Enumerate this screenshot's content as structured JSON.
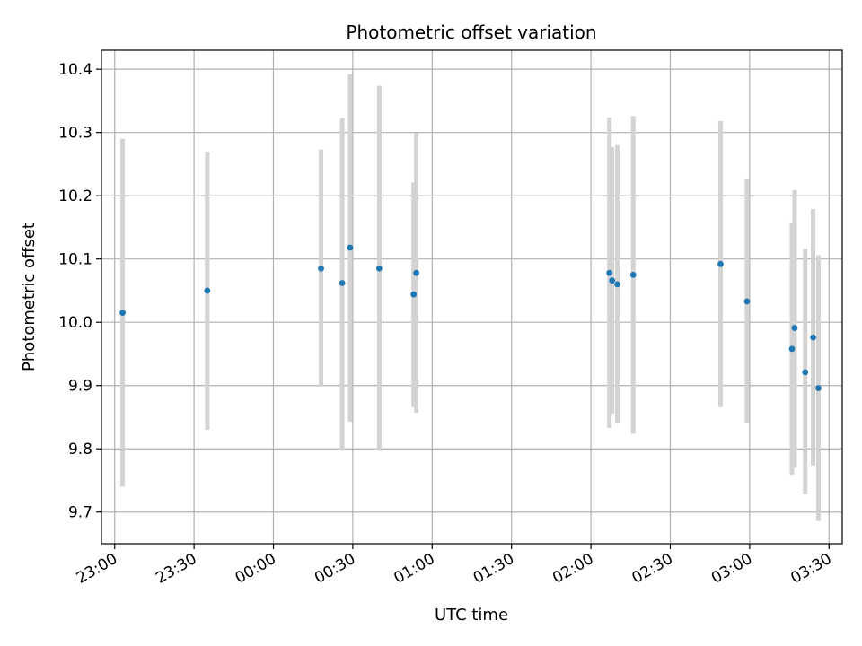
{
  "chart_data": {
    "type": "scatter",
    "title": "Photometric offset variation",
    "xlabel": "UTC time",
    "ylabel": "Photometric offset",
    "grid": true,
    "x_axis": {
      "kind": "time",
      "range": [
        "22:55",
        "03:35"
      ],
      "ticks": [
        "23:00",
        "23:30",
        "00:00",
        "00:30",
        "01:00",
        "01:30",
        "02:00",
        "02:30",
        "03:00",
        "03:30"
      ]
    },
    "y_axis": {
      "range": [
        9.65,
        10.43
      ],
      "ticks": [
        "9.7",
        "9.8",
        "9.9",
        "10.0",
        "10.1",
        "10.2",
        "10.3",
        "10.4"
      ]
    },
    "colors": {
      "points": "#1f77b4",
      "error_bars": "#d3d3d3",
      "grid": "#b0b0b0"
    },
    "series": [
      {
        "points": [
          {
            "x": "23:03",
            "y": 10.015,
            "ylow": 9.74,
            "yhigh": 10.29
          },
          {
            "x": "23:35",
            "y": 10.05,
            "ylow": 9.83,
            "yhigh": 10.27
          },
          {
            "x": "00:18",
            "y": 10.085,
            "ylow": 9.9,
            "yhigh": 10.273
          },
          {
            "x": "00:26",
            "y": 10.062,
            "ylow": 9.797,
            "yhigh": 10.323
          },
          {
            "x": "00:29",
            "y": 10.118,
            "ylow": 9.843,
            "yhigh": 10.392
          },
          {
            "x": "00:40",
            "y": 10.085,
            "ylow": 9.797,
            "yhigh": 10.374
          },
          {
            "x": "00:53",
            "y": 10.044,
            "ylow": 9.866,
            "yhigh": 10.221
          },
          {
            "x": "00:54",
            "y": 10.078,
            "ylow": 9.857,
            "yhigh": 10.299
          },
          {
            "x": "02:07",
            "y": 10.078,
            "ylow": 9.833,
            "yhigh": 10.324
          },
          {
            "x": "02:08",
            "y": 10.066,
            "ylow": 9.856,
            "yhigh": 10.277
          },
          {
            "x": "02:10",
            "y": 10.06,
            "ylow": 9.84,
            "yhigh": 10.28
          },
          {
            "x": "02:16",
            "y": 10.075,
            "ylow": 9.824,
            "yhigh": 10.326
          },
          {
            "x": "02:49",
            "y": 10.092,
            "ylow": 9.866,
            "yhigh": 10.318
          },
          {
            "x": "02:59",
            "y": 10.033,
            "ylow": 9.84,
            "yhigh": 10.226
          },
          {
            "x": "03:16",
            "y": 9.958,
            "ylow": 9.759,
            "yhigh": 10.158
          },
          {
            "x": "03:17",
            "y": 9.991,
            "ylow": 9.77,
            "yhigh": 10.209
          },
          {
            "x": "03:21",
            "y": 9.921,
            "ylow": 9.728,
            "yhigh": 10.116
          },
          {
            "x": "03:24",
            "y": 9.976,
            "ylow": 9.774,
            "yhigh": 10.179
          },
          {
            "x": "03:26",
            "y": 9.896,
            "ylow": 9.686,
            "yhigh": 10.106
          }
        ]
      }
    ]
  }
}
